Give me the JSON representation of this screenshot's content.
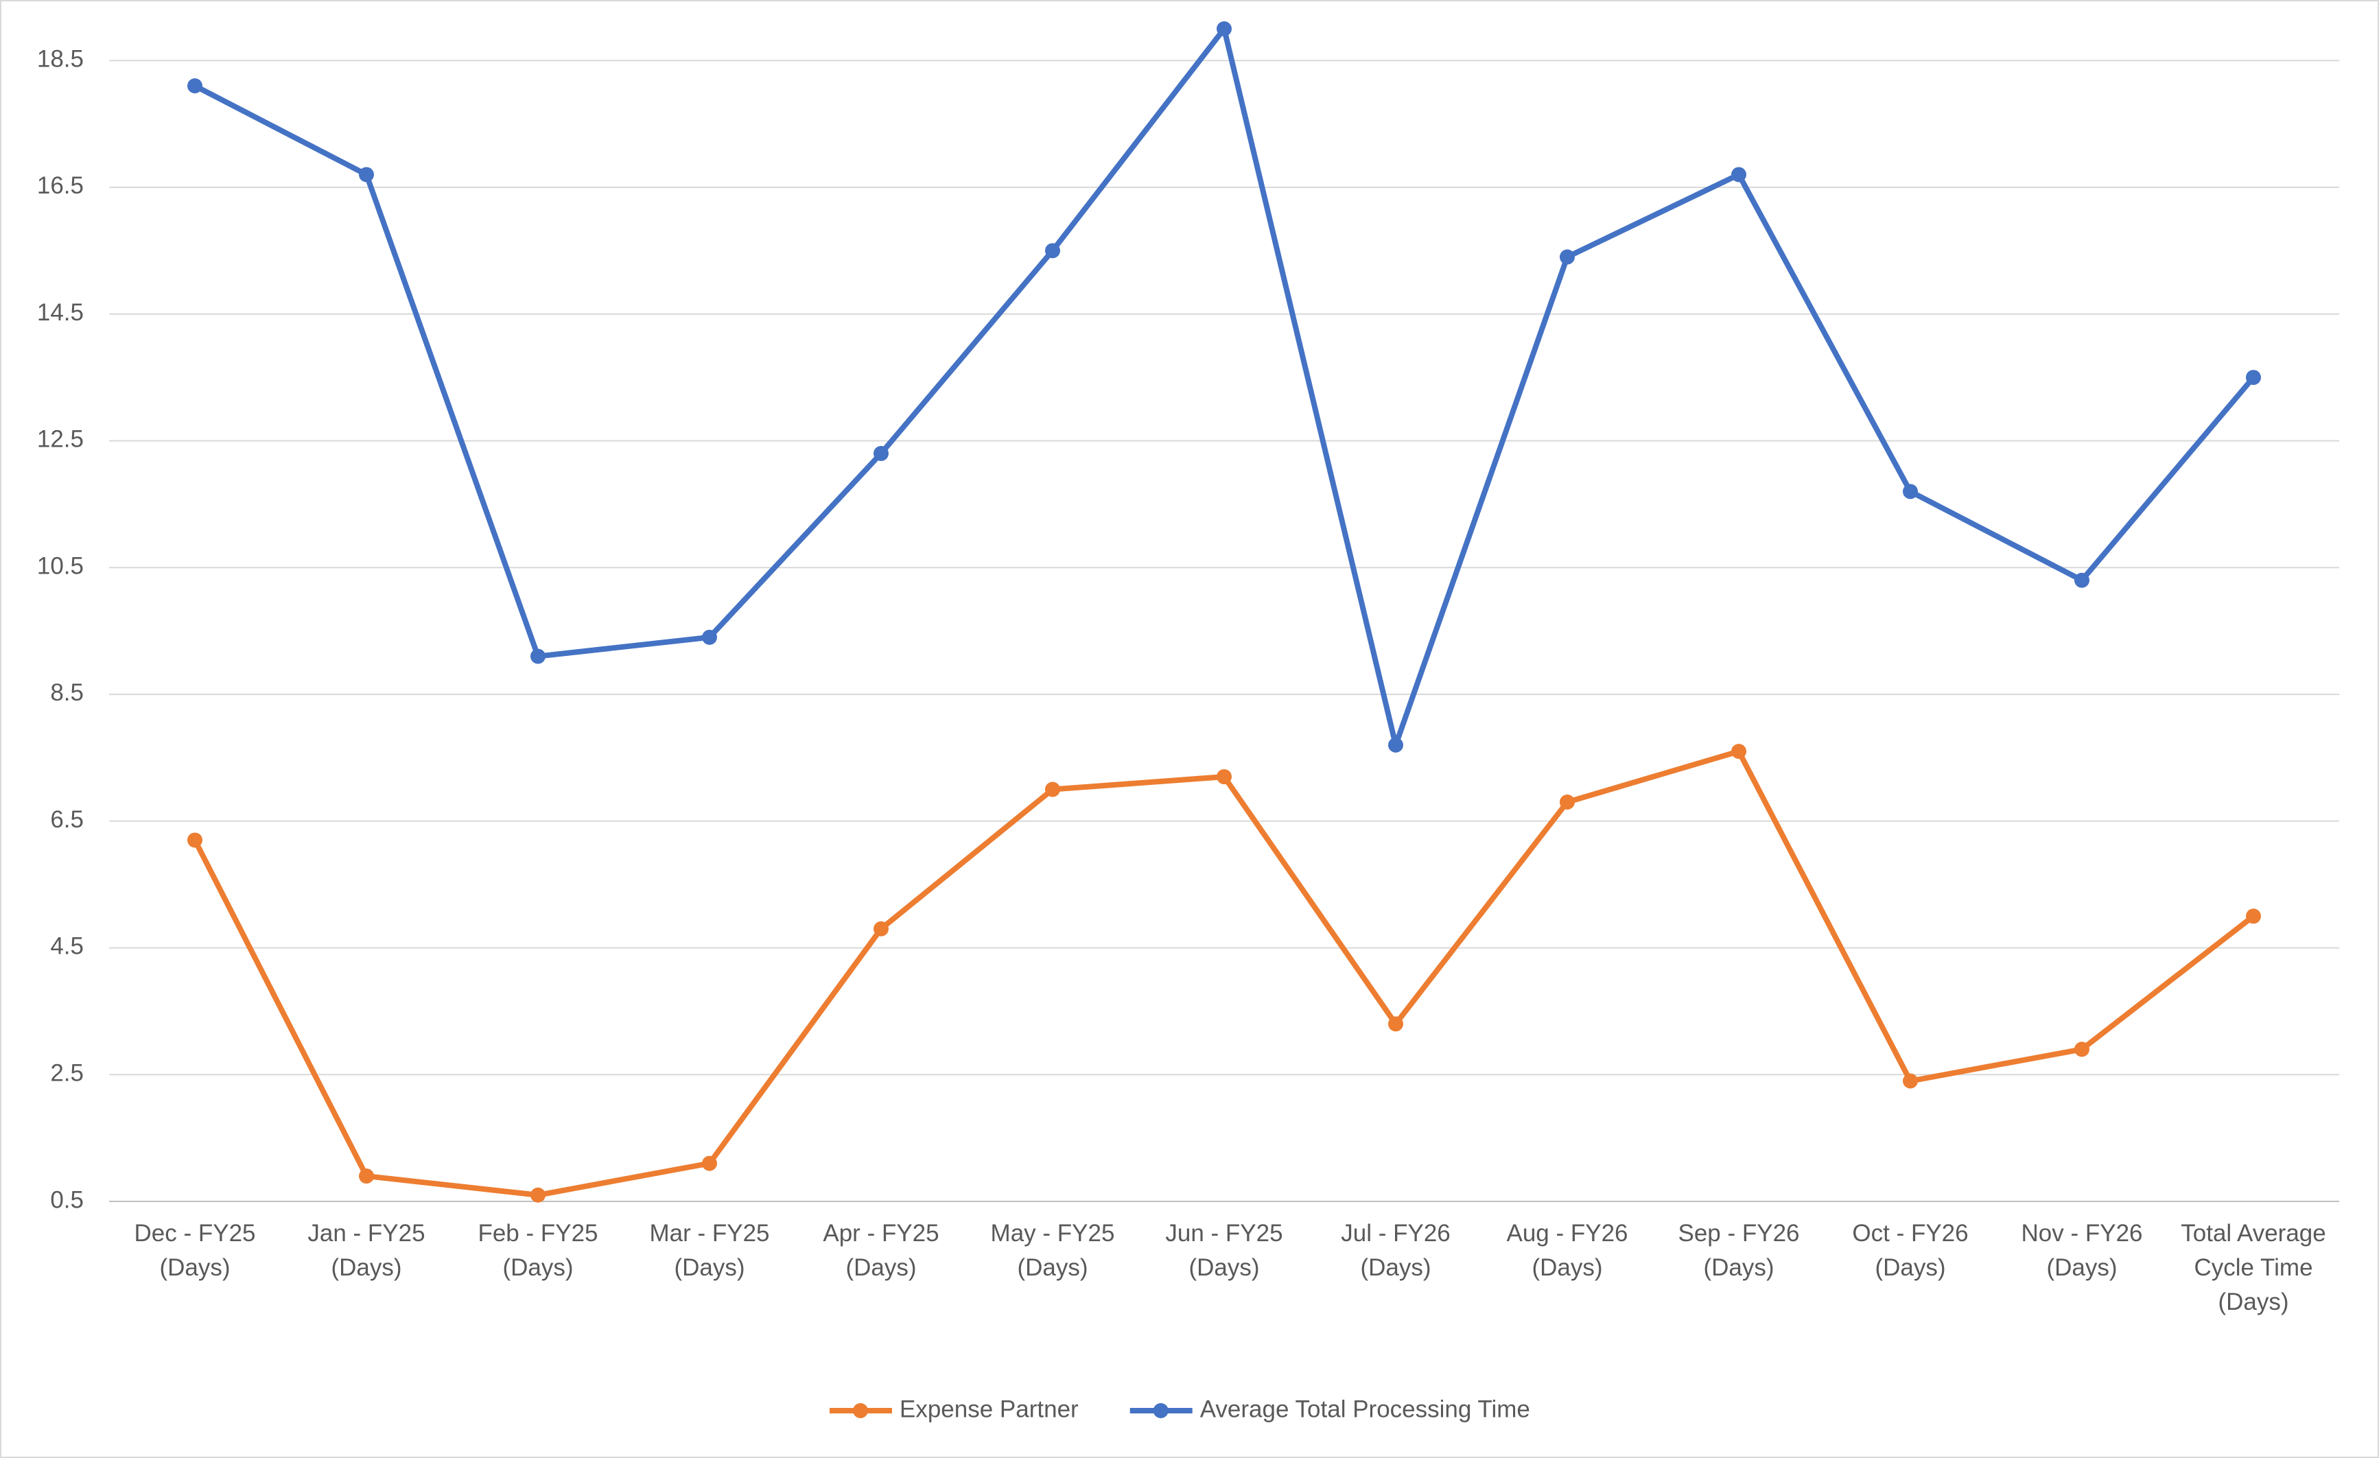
{
  "chart_data": {
    "type": "line",
    "categories": [
      "Dec - FY25 (Days)",
      "Jan - FY25 (Days)",
      "Feb - FY25 (Days)",
      "Mar - FY25 (Days)",
      "Apr - FY25 (Days)",
      "May - FY25 (Days)",
      "Jun - FY25 (Days)",
      "Jul - FY26 (Days)",
      "Aug - FY26 (Days)",
      "Sep - FY26 (Days)",
      "Oct - FY26 (Days)",
      "Nov - FY26 (Days)",
      "Total Average Cycle Time (Days)"
    ],
    "series": [
      {
        "name": "Expense Partner",
        "color": "#ed7d31",
        "values": [
          6.2,
          0.9,
          0.6,
          1.1,
          4.8,
          7.0,
          7.2,
          3.3,
          6.8,
          7.6,
          2.4,
          2.9,
          5.0
        ]
      },
      {
        "name": "Average Total Processing Time",
        "color": "#4472c4",
        "values": [
          18.1,
          16.7,
          9.1,
          9.4,
          12.3,
          15.5,
          19.0,
          7.7,
          15.4,
          16.7,
          11.7,
          10.3,
          13.5
        ]
      }
    ],
    "ylim": [
      0.5,
      19.0
    ],
    "yticks": [
      0.5,
      2.5,
      4.5,
      6.5,
      8.5,
      10.5,
      12.5,
      14.5,
      16.5,
      18.5
    ],
    "grid": true,
    "legend": "bottom"
  }
}
